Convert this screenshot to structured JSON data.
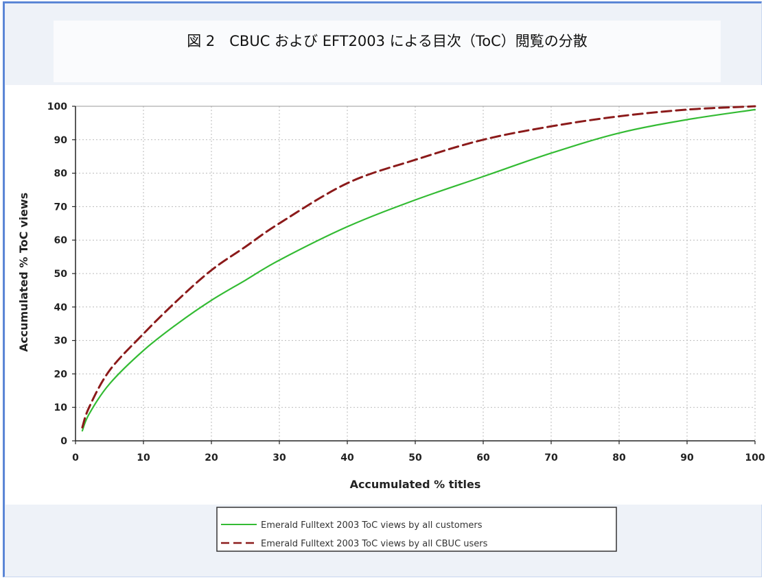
{
  "figure": {
    "title": "図 2　CBUC および EFT2003 による目次（ToC）閲覧の分散"
  },
  "chart_data": {
    "type": "line",
    "xlabel": "Accumulated % titles",
    "ylabel": "Accumulated % ToC views",
    "xlim": [
      0,
      100
    ],
    "ylim": [
      0,
      100
    ],
    "x_ticks": [
      0,
      10,
      20,
      30,
      40,
      50,
      60,
      70,
      80,
      90,
      100
    ],
    "y_ticks": [
      0,
      10,
      20,
      30,
      40,
      50,
      60,
      70,
      80,
      90,
      100
    ],
    "x_tick_labels": [
      "0",
      "10",
      "20",
      "30",
      "40",
      "50",
      "60",
      "70",
      "80",
      "90",
      "100"
    ],
    "y_tick_labels": [
      "0",
      "10",
      "20",
      "30",
      "40",
      "50",
      "60",
      "70",
      "80",
      "90",
      "100"
    ],
    "grid": true,
    "legend_position": "bottom",
    "series": [
      {
        "name": "Emerald Fulltext 2003 ToC views by all customers",
        "color": "#33bb33",
        "dash": "solid",
        "x": [
          1,
          2,
          5,
          10,
          15,
          20,
          25,
          30,
          40,
          50,
          60,
          70,
          80,
          90,
          100
        ],
        "y": [
          3,
          8,
          17,
          27,
          35,
          42,
          48,
          54,
          64,
          72,
          79,
          86,
          92,
          96,
          99
        ]
      },
      {
        "name": "Emerald Fulltext 2003 ToC views by all CBUC users",
        "color": "#8b1a1a",
        "dash": "dashed",
        "x": [
          1,
          2,
          5,
          10,
          15,
          20,
          25,
          30,
          40,
          50,
          60,
          70,
          80,
          90,
          100
        ],
        "y": [
          4,
          10,
          21,
          32,
          42,
          51,
          58,
          65,
          77,
          84,
          90,
          94,
          97,
          99,
          100
        ]
      }
    ]
  }
}
